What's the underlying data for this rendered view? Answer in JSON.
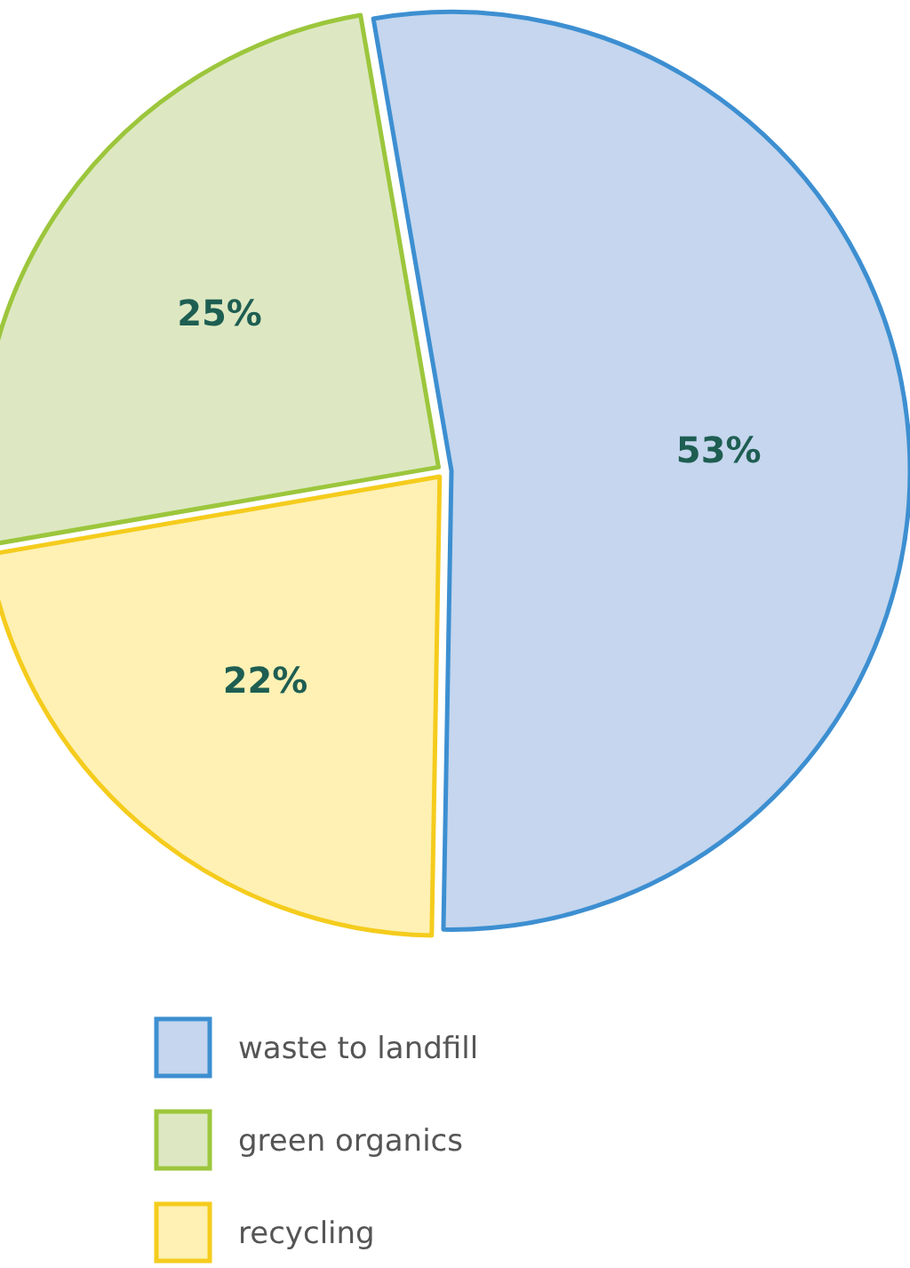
{
  "chart_data": {
    "type": "pie",
    "categories": [
      "waste to landfill",
      "green organics",
      "recycling"
    ],
    "values": [
      53,
      25,
      22
    ],
    "colors": [
      "#c5d6ee",
      "#dde8c2",
      "#fff1b3"
    ],
    "value_labels": [
      "53%",
      "25%",
      "22%"
    ],
    "legend": "bottom"
  }
}
